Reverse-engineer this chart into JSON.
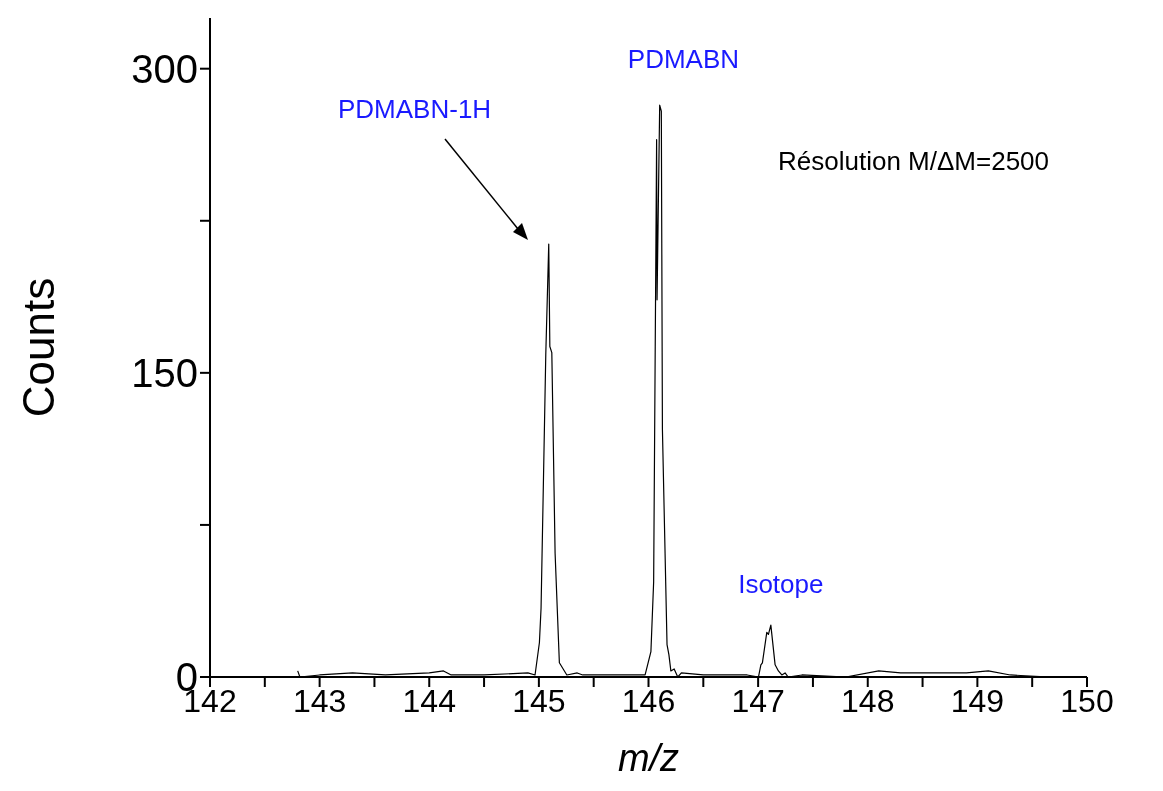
{
  "chart_data": {
    "type": "line",
    "xlabel": "m/z",
    "ylabel": "Counts",
    "x": [
      142.8,
      142.82,
      143.0,
      143.3,
      143.6,
      144.0,
      144.13,
      144.2,
      144.5,
      144.9,
      144.965,
      145.005,
      145.02,
      145.063,
      145.09,
      145.1,
      145.118,
      145.148,
      145.187,
      145.255,
      145.35,
      145.4,
      145.6,
      145.9,
      145.969,
      146.022,
      146.047,
      146.074,
      146.078,
      146.102,
      146.117,
      146.127,
      146.169,
      146.186,
      146.204,
      146.234,
      146.267,
      146.3,
      146.5,
      146.9,
      147.003,
      147.025,
      147.039,
      147.079,
      147.094,
      147.116,
      147.155,
      147.185,
      147.216,
      147.246,
      147.274,
      147.4,
      147.8,
      148.1,
      148.3,
      148.6,
      148.9,
      149.1,
      149.3,
      149.66
    ],
    "series": [
      {
        "color": "#000000",
        "values": [
          3,
          0,
          1,
          2,
          1,
          2,
          3,
          1,
          1,
          2,
          1,
          17,
          34,
          159,
          213.5,
          163,
          160,
          61,
          7,
          1,
          2,
          1,
          1,
          1,
          1,
          12.5,
          47,
          265,
          186,
          282,
          279,
          122,
          16,
          11,
          3,
          4,
          0,
          2,
          1,
          1,
          0,
          6,
          7,
          22,
          21,
          25.6,
          6,
          3,
          1,
          2,
          0,
          1,
          0,
          3,
          2,
          2,
          2,
          3,
          1,
          0
        ]
      }
    ],
    "xlim": [
      142,
      150
    ],
    "ylim": [
      0,
      325
    ],
    "xticks": [
      142,
      {
        "value": 142.5,
        "label": null
      },
      143,
      {
        "value": 143.5,
        "label": null
      },
      144,
      {
        "value": 144.5,
        "label": null
      },
      145,
      {
        "value": 145.5,
        "label": null
      },
      146,
      {
        "value": 146.5,
        "label": null
      },
      147,
      {
        "value": 147.5,
        "label": null
      },
      148,
      {
        "value": 148.5,
        "label": null
      },
      149,
      {
        "value": 149.5,
        "label": null
      },
      150
    ],
    "yticks": [
      0,
      {
        "value": 75,
        "label": null
      },
      150,
      {
        "value": 225,
        "label": null
      },
      300
    ],
    "grid": false,
    "legend": false,
    "marker": "none",
    "line_style": "solid",
    "annotations": [
      "PDMABN-1H",
      {
        "text": "PDMABN",
        "x": 146.1,
        "y": 282
      },
      {
        "text": "Isotope",
        "x": 147.116,
        "y": 25.6
      },
      "Résolution M/ΔM=2500"
    ]
  }
}
